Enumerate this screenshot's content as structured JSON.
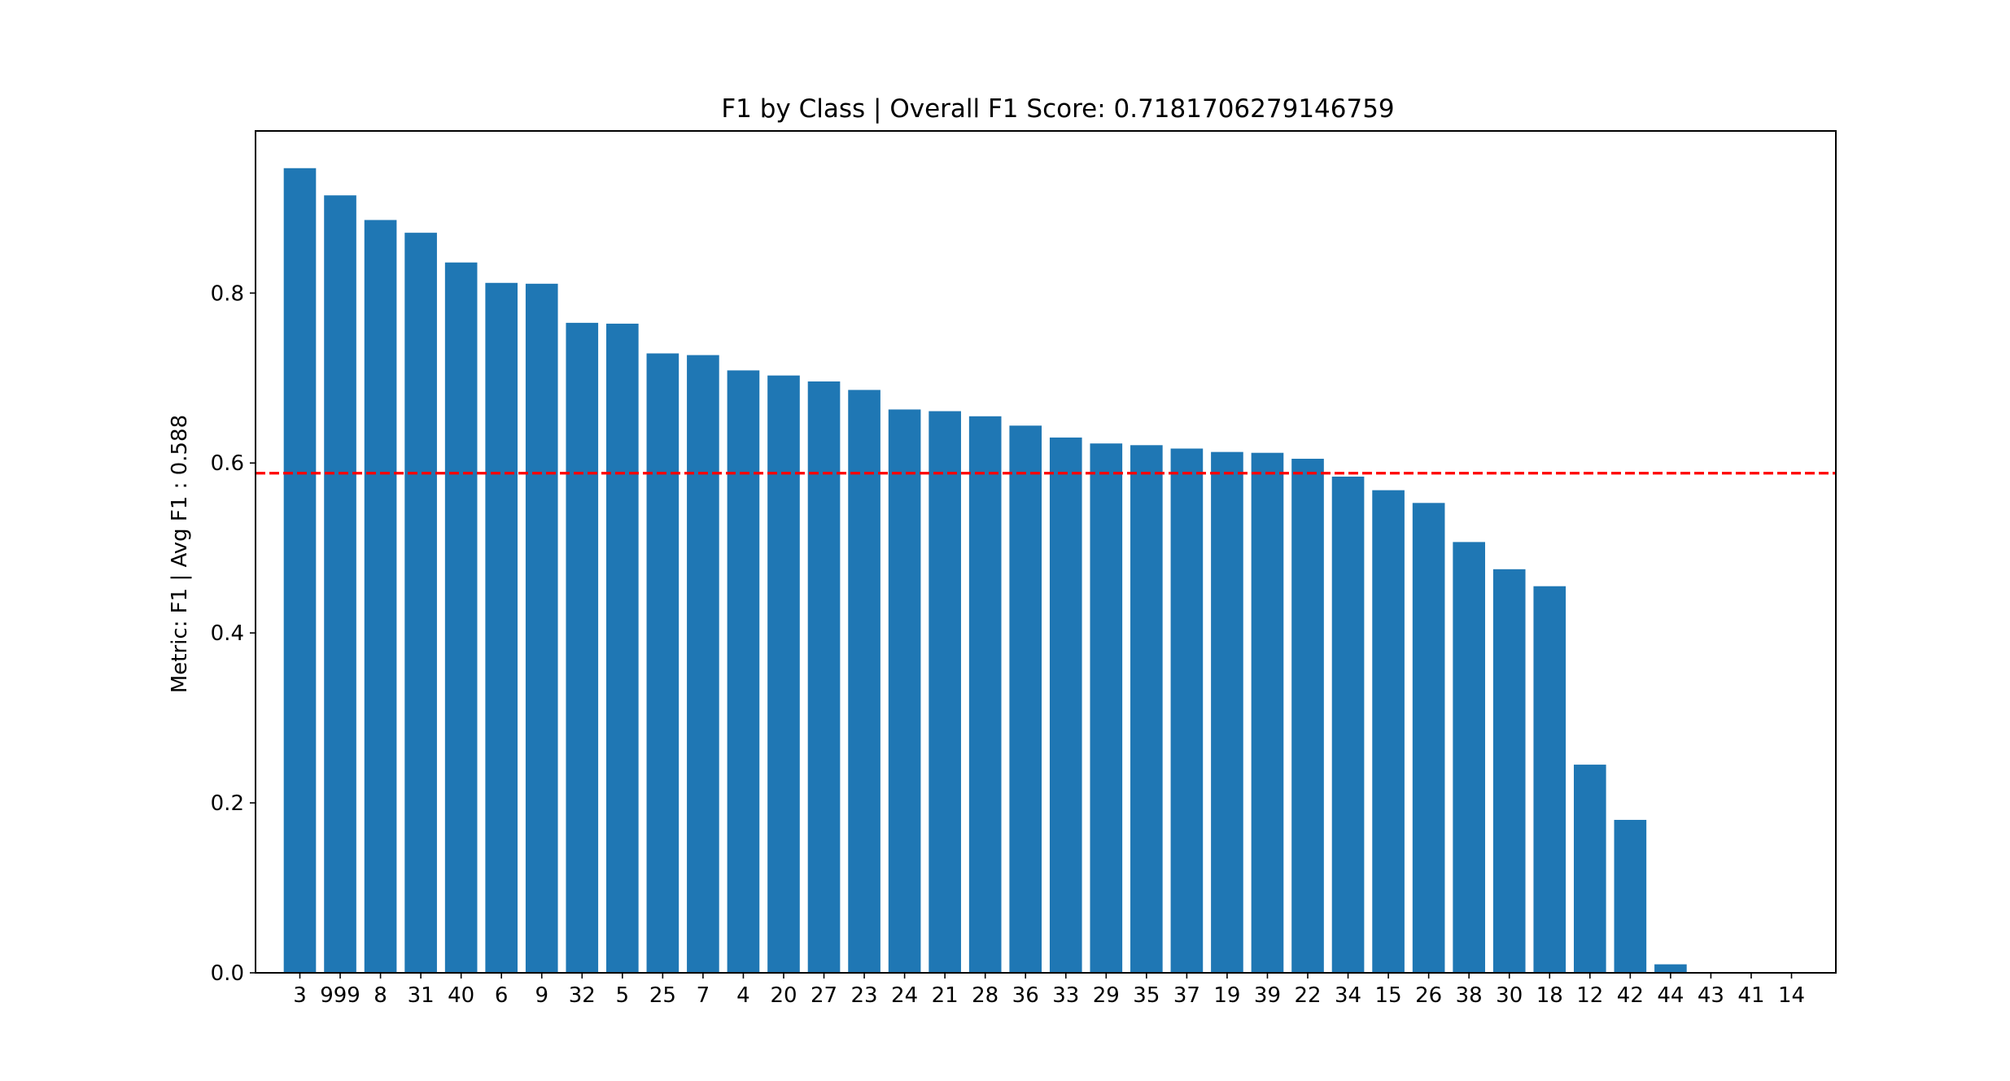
{
  "chart_data": {
    "type": "bar",
    "title": "F1 by Class | Overall F1 Score: 0.7181706279146759",
    "ylabel": "Metric: F1 | Avg F1 : 0.588",
    "xlabel": "",
    "categories": [
      "3",
      "999",
      "8",
      "31",
      "40",
      "6",
      "9",
      "32",
      "5",
      "25",
      "7",
      "4",
      "20",
      "27",
      "23",
      "24",
      "21",
      "28",
      "36",
      "33",
      "29",
      "35",
      "37",
      "19",
      "39",
      "22",
      "34",
      "15",
      "26",
      "38",
      "30",
      "18",
      "12",
      "42",
      "44",
      "43",
      "41",
      "14"
    ],
    "values": [
      0.947,
      0.915,
      0.886,
      0.871,
      0.836,
      0.812,
      0.811,
      0.765,
      0.764,
      0.729,
      0.727,
      0.709,
      0.703,
      0.696,
      0.686,
      0.663,
      0.661,
      0.655,
      0.644,
      0.63,
      0.623,
      0.621,
      0.617,
      0.613,
      0.612,
      0.605,
      0.584,
      0.568,
      0.553,
      0.507,
      0.475,
      0.455,
      0.245,
      0.18,
      0.01,
      0.0,
      0.0,
      0.0
    ],
    "reference_line": {
      "value": 0.588,
      "color": "#ff0000",
      "style": "dashed"
    },
    "bar_color": "#1f77b4",
    "ylim": [
      0.0,
      0.9908
    ],
    "yticks": [
      0.0,
      0.2,
      0.4,
      0.6,
      0.8
    ],
    "ytick_labels": [
      "0.0",
      "0.2",
      "0.4",
      "0.6",
      "0.8"
    ],
    "grid": false,
    "legend": "none"
  }
}
